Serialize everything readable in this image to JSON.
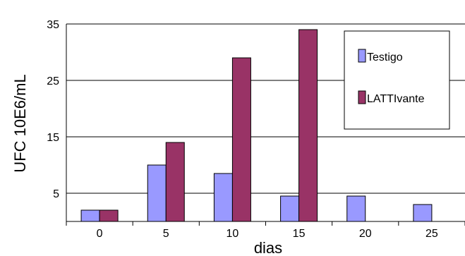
{
  "chart_data": {
    "type": "bar",
    "categories": [
      "0",
      "5",
      "10",
      "15",
      "20",
      "25"
    ],
    "series": [
      {
        "name": "Testigo",
        "color": "#9999ff",
        "values": [
          2,
          10,
          8.5,
          4.5,
          4.5,
          3
        ]
      },
      {
        "name": "LATTIvante",
        "color": "#993366",
        "values": [
          2,
          14,
          29,
          34,
          null,
          null
        ]
      }
    ],
    "y_ticks": [
      "5",
      "15",
      "25",
      "35"
    ],
    "y_tick_values": [
      5,
      15,
      25,
      35
    ],
    "ylim": [
      0,
      35
    ],
    "xlabel": "dias",
    "ylabel": "UFC 10E6/mL",
    "title": "",
    "grid": "horizontal",
    "legend_position": "right"
  }
}
